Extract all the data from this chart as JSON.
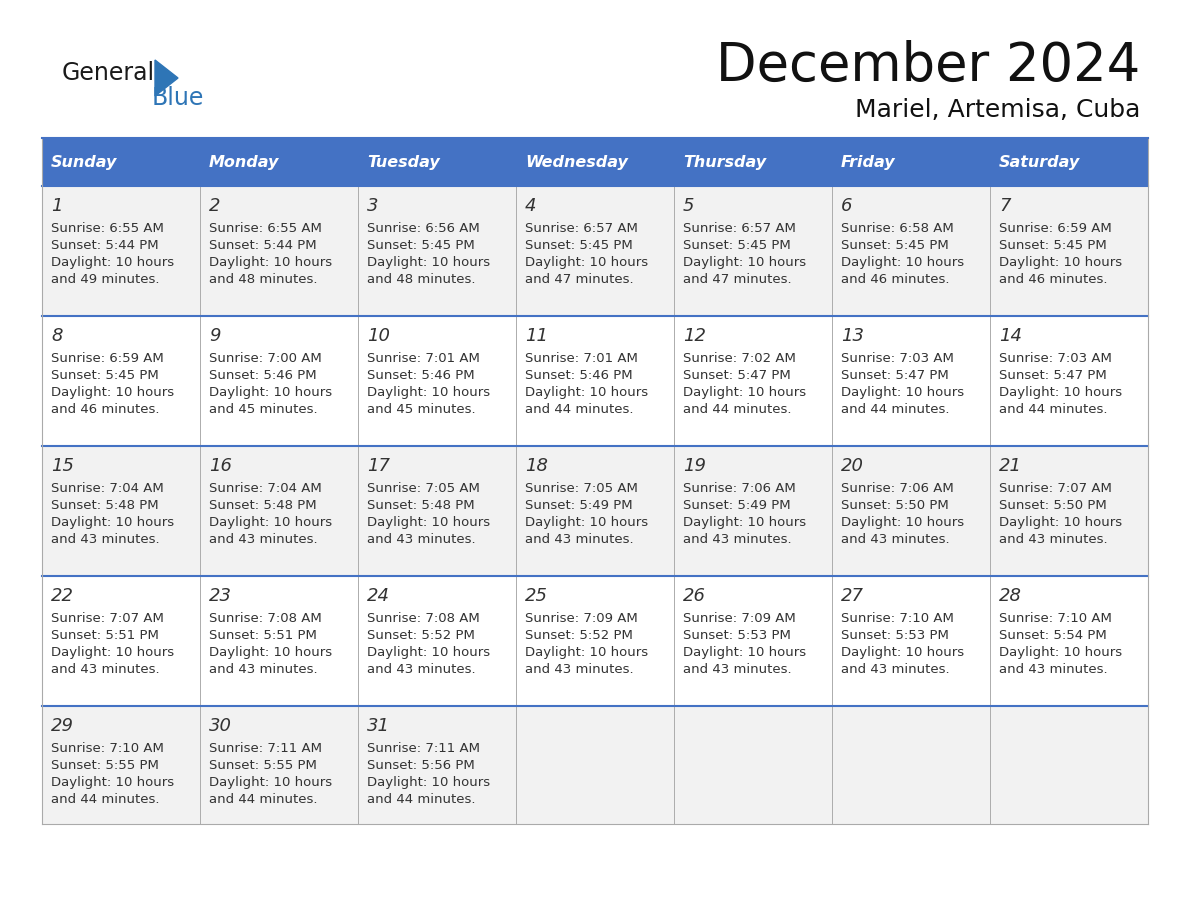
{
  "title": "December 2024",
  "subtitle": "Mariel, Artemisa, Cuba",
  "header_bg": "#4472C4",
  "header_text_color": "#FFFFFF",
  "cell_bg_odd_row": "#F2F2F2",
  "cell_bg_even_row": "#FFFFFF",
  "days_of_week": [
    "Sunday",
    "Monday",
    "Tuesday",
    "Wednesday",
    "Thursday",
    "Friday",
    "Saturday"
  ],
  "logo_general_color": "#1a1a1a",
  "logo_blue_color": "#2E75B6",
  "calendar_data": [
    [
      {
        "day": 1,
        "sunrise": "6:55 AM",
        "sunset": "5:44 PM",
        "daylight": "10 hours and 49 minutes."
      },
      {
        "day": 2,
        "sunrise": "6:55 AM",
        "sunset": "5:44 PM",
        "daylight": "10 hours and 48 minutes."
      },
      {
        "day": 3,
        "sunrise": "6:56 AM",
        "sunset": "5:45 PM",
        "daylight": "10 hours and 48 minutes."
      },
      {
        "day": 4,
        "sunrise": "6:57 AM",
        "sunset": "5:45 PM",
        "daylight": "10 hours and 47 minutes."
      },
      {
        "day": 5,
        "sunrise": "6:57 AM",
        "sunset": "5:45 PM",
        "daylight": "10 hours and 47 minutes."
      },
      {
        "day": 6,
        "sunrise": "6:58 AM",
        "sunset": "5:45 PM",
        "daylight": "10 hours and 46 minutes."
      },
      {
        "day": 7,
        "sunrise": "6:59 AM",
        "sunset": "5:45 PM",
        "daylight": "10 hours and 46 minutes."
      }
    ],
    [
      {
        "day": 8,
        "sunrise": "6:59 AM",
        "sunset": "5:45 PM",
        "daylight": "10 hours and 46 minutes."
      },
      {
        "day": 9,
        "sunrise": "7:00 AM",
        "sunset": "5:46 PM",
        "daylight": "10 hours and 45 minutes."
      },
      {
        "day": 10,
        "sunrise": "7:01 AM",
        "sunset": "5:46 PM",
        "daylight": "10 hours and 45 minutes."
      },
      {
        "day": 11,
        "sunrise": "7:01 AM",
        "sunset": "5:46 PM",
        "daylight": "10 hours and 44 minutes."
      },
      {
        "day": 12,
        "sunrise": "7:02 AM",
        "sunset": "5:47 PM",
        "daylight": "10 hours and 44 minutes."
      },
      {
        "day": 13,
        "sunrise": "7:03 AM",
        "sunset": "5:47 PM",
        "daylight": "10 hours and 44 minutes."
      },
      {
        "day": 14,
        "sunrise": "7:03 AM",
        "sunset": "5:47 PM",
        "daylight": "10 hours and 44 minutes."
      }
    ],
    [
      {
        "day": 15,
        "sunrise": "7:04 AM",
        "sunset": "5:48 PM",
        "daylight": "10 hours and 43 minutes."
      },
      {
        "day": 16,
        "sunrise": "7:04 AM",
        "sunset": "5:48 PM",
        "daylight": "10 hours and 43 minutes."
      },
      {
        "day": 17,
        "sunrise": "7:05 AM",
        "sunset": "5:48 PM",
        "daylight": "10 hours and 43 minutes."
      },
      {
        "day": 18,
        "sunrise": "7:05 AM",
        "sunset": "5:49 PM",
        "daylight": "10 hours and 43 minutes."
      },
      {
        "day": 19,
        "sunrise": "7:06 AM",
        "sunset": "5:49 PM",
        "daylight": "10 hours and 43 minutes."
      },
      {
        "day": 20,
        "sunrise": "7:06 AM",
        "sunset": "5:50 PM",
        "daylight": "10 hours and 43 minutes."
      },
      {
        "day": 21,
        "sunrise": "7:07 AM",
        "sunset": "5:50 PM",
        "daylight": "10 hours and 43 minutes."
      }
    ],
    [
      {
        "day": 22,
        "sunrise": "7:07 AM",
        "sunset": "5:51 PM",
        "daylight": "10 hours and 43 minutes."
      },
      {
        "day": 23,
        "sunrise": "7:08 AM",
        "sunset": "5:51 PM",
        "daylight": "10 hours and 43 minutes."
      },
      {
        "day": 24,
        "sunrise": "7:08 AM",
        "sunset": "5:52 PM",
        "daylight": "10 hours and 43 minutes."
      },
      {
        "day": 25,
        "sunrise": "7:09 AM",
        "sunset": "5:52 PM",
        "daylight": "10 hours and 43 minutes."
      },
      {
        "day": 26,
        "sunrise": "7:09 AM",
        "sunset": "5:53 PM",
        "daylight": "10 hours and 43 minutes."
      },
      {
        "day": 27,
        "sunrise": "7:10 AM",
        "sunset": "5:53 PM",
        "daylight": "10 hours and 43 minutes."
      },
      {
        "day": 28,
        "sunrise": "7:10 AM",
        "sunset": "5:54 PM",
        "daylight": "10 hours and 43 minutes."
      }
    ],
    [
      {
        "day": 29,
        "sunrise": "7:10 AM",
        "sunset": "5:55 PM",
        "daylight": "10 hours and 44 minutes."
      },
      {
        "day": 30,
        "sunrise": "7:11 AM",
        "sunset": "5:55 PM",
        "daylight": "10 hours and 44 minutes."
      },
      {
        "day": 31,
        "sunrise": "7:11 AM",
        "sunset": "5:56 PM",
        "daylight": "10 hours and 44 minutes."
      },
      null,
      null,
      null,
      null
    ]
  ],
  "fig_width": 11.88,
  "fig_height": 9.18,
  "bg_color": "#FFFFFF",
  "border_color": "#4472C4",
  "grid_line_color": "#AAAAAA",
  "cell_text_color": "#333333"
}
